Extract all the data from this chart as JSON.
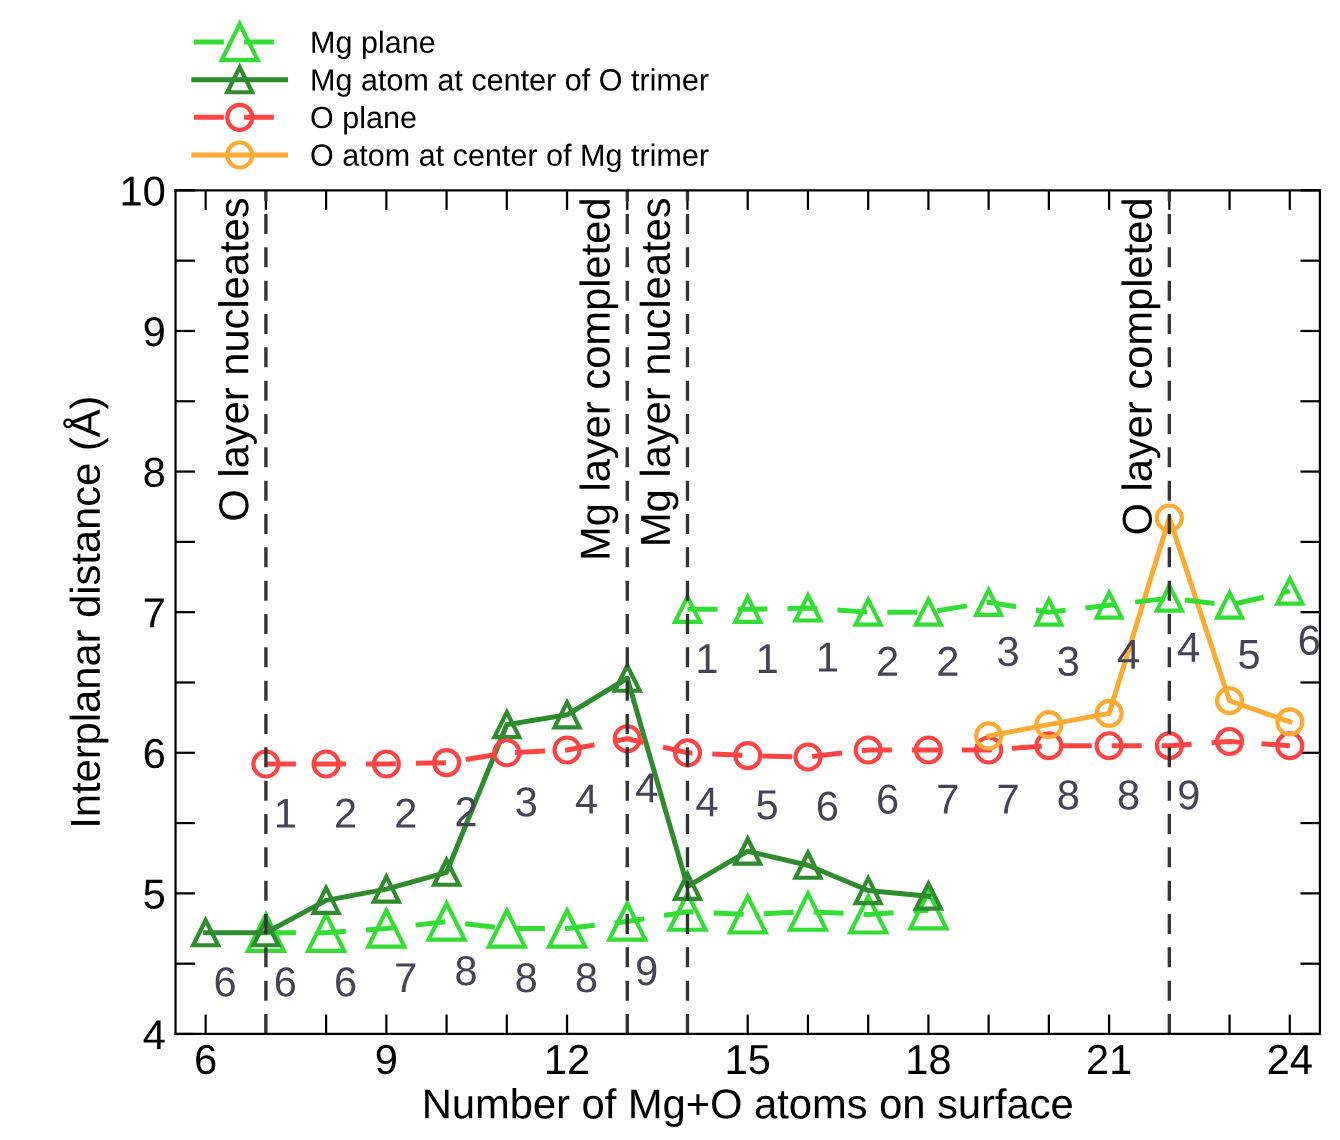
{
  "chart_data": {
    "type": "line",
    "xlabel": "Number of Mg+O atoms on surface",
    "ylabel": "Interplanar distance (Å)",
    "xlim": [
      5.5,
      24.5
    ],
    "ylim": [
      4,
      10
    ],
    "xticks": [
      6,
      {
        "value": 7,
        "label": null
      },
      {
        "value": 8,
        "label": null
      },
      9,
      {
        "value": 10,
        "label": null
      },
      {
        "value": 11,
        "label": null
      },
      12,
      {
        "value": 13,
        "label": null
      },
      {
        "value": 14,
        "label": null
      },
      15,
      {
        "value": 16,
        "label": null
      },
      {
        "value": 17,
        "label": null
      },
      18,
      {
        "value": 19,
        "label": null
      },
      {
        "value": 20,
        "label": null
      },
      21,
      {
        "value": 22,
        "label": null
      },
      {
        "value": 23,
        "label": null
      },
      24
    ],
    "yticks": [
      4,
      {
        "value": 4.5,
        "label": null
      },
      5,
      {
        "value": 5.5,
        "label": null
      },
      6,
      {
        "value": 6.5,
        "label": null
      },
      7,
      {
        "value": 7.5,
        "label": null
      },
      8,
      {
        "value": 8.5,
        "label": null
      },
      9,
      {
        "value": 9.5,
        "label": null
      },
      10
    ],
    "grid": false,
    "legend": "top left",
    "series": [
      {
        "name": "Mg plane",
        "color": "#33dd33",
        "marker": "triangle",
        "line_style": "dashed",
        "x": [
          7,
          8,
          9,
          10,
          11,
          12,
          13,
          14,
          15,
          16,
          17,
          18
        ],
        "values": [
          4.72,
          4.72,
          4.75,
          4.8,
          4.75,
          4.75,
          4.8,
          4.87,
          4.85,
          4.87,
          4.85,
          4.88
        ]
      },
      {
        "name": "Mg atom at center of O trimer",
        "color": "#2e8b2e",
        "marker": "triangle",
        "line_style": "solid",
        "x": [
          6,
          7,
          8,
          9,
          10,
          11,
          12,
          13,
          14,
          15,
          16,
          17,
          18
        ],
        "values": [
          4.72,
          4.72,
          4.95,
          5.03,
          5.15,
          6.2,
          6.27,
          6.53,
          5.05,
          5.3,
          5.2,
          5.02,
          4.98
        ]
      },
      {
        "name": "O plane",
        "color": "#ff4444",
        "marker": "circle",
        "line_style": "dashed",
        "x": [
          7,
          8,
          9,
          10,
          11,
          12,
          13,
          14,
          15,
          16,
          17,
          18,
          19,
          20,
          21,
          22,
          23,
          24
        ],
        "values": [
          5.92,
          5.92,
          5.92,
          5.93,
          6.0,
          6.02,
          6.1,
          6.0,
          5.98,
          5.97,
          6.02,
          6.02,
          6.02,
          6.05,
          6.05,
          6.05,
          6.08,
          6.05
        ]
      },
      {
        "name": "O atom at center of Mg trimer",
        "color": "#ffaa33",
        "marker": "circle",
        "line_style": "solid",
        "x": [
          19,
          20,
          21,
          22,
          23,
          24
        ],
        "values": [
          6.12,
          6.2,
          6.28,
          7.67,
          6.37,
          6.22
        ]
      },
      {
        "color": "#33dd33",
        "marker": "triangle",
        "line_style": "dashed",
        "x": [
          14,
          15,
          16,
          17,
          18,
          19,
          20,
          21,
          22,
          23,
          24
        ],
        "values": [
          7.02,
          7.02,
          7.03,
          7.0,
          7.0,
          7.07,
          7.0,
          7.05,
          7.1,
          7.05,
          7.15
        ]
      }
    ],
    "annotations": [
      {
        "text": "6",
        "x": 6,
        "y": 4.72
      },
      {
        "text": "6",
        "x": 7,
        "y": 4.72
      },
      {
        "text": "6",
        "x": 8,
        "y": 4.72
      },
      {
        "text": "7",
        "x": 9,
        "y": 4.75
      },
      {
        "text": "8",
        "x": 10,
        "y": 4.8
      },
      {
        "text": "8",
        "x": 11,
        "y": 4.75
      },
      {
        "text": "8",
        "x": 12,
        "y": 4.75
      },
      {
        "text": "9",
        "x": 13,
        "y": 4.8
      },
      {
        "text": "1",
        "x": 7,
        "y": 5.92
      },
      {
        "text": "2",
        "x": 8,
        "y": 5.92
      },
      {
        "text": "2",
        "x": 9,
        "y": 5.92
      },
      {
        "text": "2",
        "x": 10,
        "y": 5.93
      },
      {
        "text": "3",
        "x": 11,
        "y": 6.0
      },
      {
        "text": "4",
        "x": 12,
        "y": 6.02
      },
      {
        "text": "4",
        "x": 13,
        "y": 6.1
      },
      {
        "text": "4",
        "x": 14,
        "y": 6.0
      },
      {
        "text": "5",
        "x": 15,
        "y": 5.98
      },
      {
        "text": "6",
        "x": 16,
        "y": 5.97
      },
      {
        "text": "6",
        "x": 17,
        "y": 6.02
      },
      {
        "text": "7",
        "x": 18,
        "y": 6.02
      },
      {
        "text": "7",
        "x": 19,
        "y": 6.02
      },
      {
        "text": "8",
        "x": 20,
        "y": 6.05
      },
      {
        "text": "8",
        "x": 21,
        "y": 6.05
      },
      {
        "text": "9",
        "x": 22,
        "y": 6.05
      },
      {
        "text": "1",
        "x": 14,
        "y": 7.02
      },
      {
        "text": "1",
        "x": 15,
        "y": 7.02
      },
      {
        "text": "1",
        "x": 16,
        "y": 7.03
      },
      {
        "text": "2",
        "x": 17,
        "y": 7.0
      },
      {
        "text": "2",
        "x": 18,
        "y": 7.0
      },
      {
        "text": "3",
        "x": 19,
        "y": 7.07
      },
      {
        "text": "3",
        "x": 20,
        "y": 7.0
      },
      {
        "text": "4",
        "x": 21,
        "y": 7.05
      },
      {
        "text": "4",
        "x": 22,
        "y": 7.1
      },
      {
        "text": "5",
        "x": 23,
        "y": 7.05
      },
      {
        "text": "6",
        "x": 24,
        "y": 7.15
      }
    ],
    "ref_lines": [
      {
        "axis": "x",
        "value": 7,
        "label": "O layer nucleates",
        "color": "#333333",
        "line_style": "dashed"
      },
      {
        "axis": "x",
        "value": 13,
        "label": "Mg layer completed",
        "color": "#333333",
        "line_style": "dashed"
      },
      {
        "axis": "x",
        "value": 14,
        "label": "Mg layer nucleates",
        "color": "#333333",
        "line_style": "dashed"
      },
      {
        "axis": "x",
        "value": 22,
        "label": "O layer completed",
        "color": "#333333",
        "line_style": "dashed"
      }
    ]
  }
}
